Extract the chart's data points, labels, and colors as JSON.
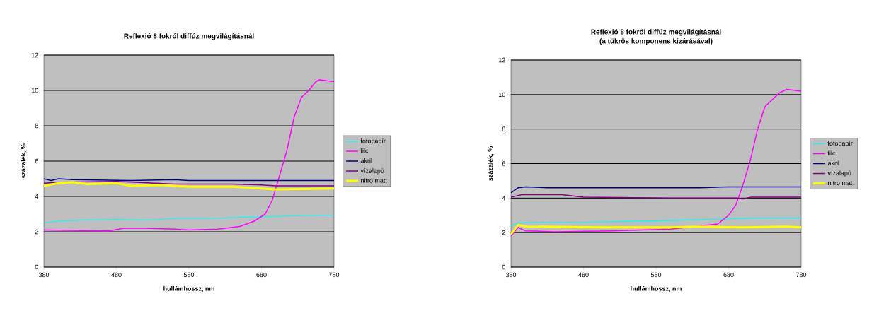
{
  "chart_data": [
    {
      "type": "line",
      "title": "Reflexió 8 fokról diffúz megvilágításnál",
      "xlabel": "hullámhossz, nm",
      "ylabel": "százalék, %",
      "xlim": [
        380,
        780
      ],
      "xticks": [
        380,
        480,
        580,
        680,
        780
      ],
      "ylim": [
        0,
        12
      ],
      "yticks": [
        0,
        2,
        4,
        6,
        8,
        10,
        12
      ],
      "grid": "y",
      "legend": "right",
      "marker": "none",
      "line_style": "solid",
      "series": [
        {
          "name": "fotopapír",
          "color": "#00ffff",
          "x": [
            380,
            400,
            430,
            480,
            520,
            560,
            600,
            640,
            680,
            720,
            780
          ],
          "values": [
            2.5,
            2.6,
            2.65,
            2.7,
            2.65,
            2.75,
            2.75,
            2.8,
            2.85,
            2.9,
            2.95
          ]
        },
        {
          "name": "filc",
          "color": "#ff00ff",
          "x": [
            380,
            470,
            490,
            520,
            560,
            580,
            620,
            650,
            670,
            685,
            695,
            705,
            715,
            725,
            735,
            745,
            755,
            760,
            780
          ],
          "values": [
            2.1,
            2.05,
            2.2,
            2.2,
            2.15,
            2.1,
            2.15,
            2.3,
            2.6,
            3.0,
            3.8,
            5.2,
            6.6,
            8.5,
            9.6,
            10.0,
            10.5,
            10.6,
            10.5
          ]
        },
        {
          "name": "akril",
          "color": "#000080",
          "x": [
            380,
            390,
            400,
            420,
            500,
            560,
            580,
            780
          ],
          "values": [
            5.0,
            4.9,
            5.0,
            4.95,
            4.9,
            4.95,
            4.9,
            4.9
          ]
        },
        {
          "name": "vízalapú",
          "color": "#800080",
          "x": [
            380,
            400,
            480,
            560,
            640,
            680,
            700,
            780
          ],
          "values": [
            4.75,
            4.8,
            4.85,
            4.7,
            4.7,
            4.65,
            4.6,
            4.6
          ]
        },
        {
          "name": "nitro matt",
          "color": "#ffff00",
          "x": [
            380,
            400,
            420,
            440,
            480,
            500,
            540,
            580,
            640,
            680,
            700,
            780
          ],
          "values": [
            4.6,
            4.75,
            4.8,
            4.7,
            4.75,
            4.6,
            4.65,
            4.55,
            4.55,
            4.45,
            4.4,
            4.45
          ]
        }
      ]
    },
    {
      "type": "line",
      "title": "Reflexió 8 fokról diffúz megvilágításnál",
      "subtitle": "(a tükrös komponens kizárásával)",
      "xlabel": "hullámhossz, nm",
      "ylabel": "százalék, %",
      "xlim": [
        380,
        780
      ],
      "xticks": [
        380,
        480,
        580,
        680,
        780
      ],
      "ylim": [
        0,
        12
      ],
      "yticks": [
        0,
        2,
        4,
        6,
        8,
        10,
        12
      ],
      "grid": "y",
      "legend": "right",
      "marker": "none",
      "line_style": "solid",
      "series": [
        {
          "name": "fotopapír",
          "color": "#00ffff",
          "x": [
            380,
            390,
            420,
            480,
            540,
            600,
            640,
            680,
            720,
            780
          ],
          "values": [
            2.4,
            2.55,
            2.6,
            2.6,
            2.65,
            2.7,
            2.75,
            2.8,
            2.85,
            2.85
          ]
        },
        {
          "name": "filc",
          "color": "#ff00ff",
          "x": [
            380,
            390,
            400,
            440,
            520,
            600,
            650,
            665,
            680,
            690,
            700,
            710,
            720,
            730,
            740,
            750,
            760,
            780
          ],
          "values": [
            1.8,
            2.3,
            2.1,
            2.05,
            2.1,
            2.2,
            null,
            2.5,
            3.0,
            3.6,
            4.8,
            6.2,
            8.0,
            9.3,
            9.7,
            10.1,
            10.3,
            10.2
          ]
        },
        {
          "name": "akril",
          "color": "#000080",
          "x": [
            380,
            390,
            400,
            430,
            640,
            680,
            780
          ],
          "values": [
            4.3,
            4.6,
            4.65,
            4.6,
            4.6,
            4.65,
            4.65
          ]
        },
        {
          "name": "vízalapú",
          "color": "#800080",
          "x": [
            380,
            395,
            450,
            480,
            600,
            690,
            700,
            710,
            780
          ],
          "values": [
            4.05,
            4.2,
            4.2,
            4.05,
            4.0,
            4.0,
            3.95,
            4.05,
            4.05
          ]
        },
        {
          "name": "nitro matt",
          "color": "#ffff00",
          "x": [
            380,
            390,
            400,
            500,
            600,
            640,
            700,
            760,
            780
          ],
          "values": [
            1.9,
            2.45,
            2.35,
            2.3,
            2.3,
            2.35,
            2.3,
            2.35,
            2.3
          ]
        }
      ]
    }
  ]
}
